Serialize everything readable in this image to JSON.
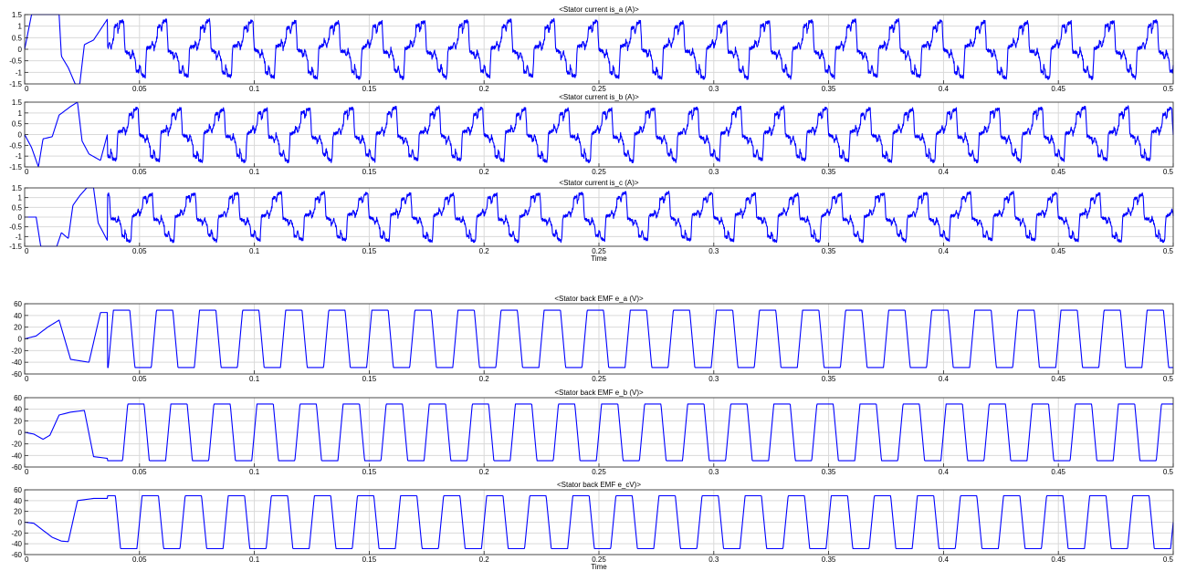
{
  "figure": {
    "trace_color": "#0000ff",
    "grid": true
  },
  "chart_data": [
    {
      "type": "line",
      "title": "<Stator current is_a (A)>",
      "xlabel": "",
      "ylabel": "",
      "xlim": [
        0,
        0.5
      ],
      "ylim": [
        -1.5,
        1.5
      ],
      "xticks": [
        0,
        0.05,
        0.1,
        0.15,
        0.2,
        0.25,
        0.3,
        0.35,
        0.4,
        0.45,
        0.5
      ],
      "xtick_labels": [
        "0",
        "0.05",
        "0.1",
        "0.15",
        "0.2",
        "0.25",
        "0.3",
        "0.35",
        "0.4",
        "0.45",
        "0.5"
      ],
      "yticks": [
        -1.5,
        -1,
        -0.5,
        0,
        0.5,
        1,
        1.5
      ],
      "ytick_labels": [
        "-1.5",
        "-1",
        "-0.5",
        "0",
        "0.5",
        "1",
        "1.5"
      ],
      "series": [
        {
          "kind": "current",
          "period": 0.01875,
          "phase": 0.0,
          "amplitude": 1.25,
          "startup": [
            [
              0,
              0
            ],
            [
              0.003,
              1.5
            ],
            [
              0.015,
              1.5
            ],
            [
              0.016,
              -0.3
            ],
            [
              0.019,
              -0.8
            ],
            [
              0.022,
              -1.5
            ],
            [
              0.024,
              -1.5
            ],
            [
              0.026,
              0.2
            ],
            [
              0.03,
              0.4
            ],
            [
              0.036,
              1.3
            ]
          ]
        }
      ]
    },
    {
      "type": "line",
      "title": "<Stator current is_b (A)>",
      "xlabel": "",
      "ylabel": "",
      "xlim": [
        0,
        0.5
      ],
      "ylim": [
        -1.5,
        1.5
      ],
      "xticks": [
        0,
        0.05,
        0.1,
        0.15,
        0.2,
        0.25,
        0.3,
        0.35,
        0.4,
        0.45,
        0.5
      ],
      "xtick_labels": [
        "0",
        "0.05",
        "0.1",
        "0.15",
        "0.2",
        "0.25",
        "0.3",
        "0.35",
        "0.4",
        "0.45",
        "0.5"
      ],
      "yticks": [
        -1.5,
        -1,
        -0.5,
        0,
        0.5,
        1,
        1.5
      ],
      "ytick_labels": [
        "-1.5",
        "-1",
        "-0.5",
        "0",
        "0.5",
        "1",
        "1.5"
      ],
      "series": [
        {
          "kind": "current",
          "period": 0.01875,
          "phase": 0.00625,
          "amplitude": 1.25,
          "startup": [
            [
              0,
              0
            ],
            [
              0.003,
              -0.6
            ],
            [
              0.006,
              -1.5
            ],
            [
              0.008,
              -0.2
            ],
            [
              0.012,
              -0.1
            ],
            [
              0.015,
              0.9
            ],
            [
              0.02,
              1.3
            ],
            [
              0.023,
              1.5
            ],
            [
              0.025,
              -0.3
            ],
            [
              0.028,
              -0.9
            ],
            [
              0.033,
              -1.2
            ],
            [
              0.036,
              0
            ]
          ]
        }
      ]
    },
    {
      "type": "line",
      "title": "<Stator current is_c (A)>",
      "xlabel": "Time",
      "ylabel": "",
      "xlim": [
        0,
        0.5
      ],
      "ylim": [
        -1.5,
        1.5
      ],
      "xticks": [
        0,
        0.05,
        0.1,
        0.15,
        0.2,
        0.25,
        0.3,
        0.35,
        0.4,
        0.45,
        0.5
      ],
      "xtick_labels": [
        "0",
        "0.05",
        "0.1",
        "0.15",
        "0.2",
        "0.25",
        "0.3",
        "0.35",
        "0.4",
        "0.45",
        "0.5"
      ],
      "yticks": [
        -1.5,
        -1,
        -0.5,
        0,
        0.5,
        1,
        1.5
      ],
      "ytick_labels": [
        "-1.5",
        "-1",
        "-0.5",
        "0",
        "0.5",
        "1",
        "1.5"
      ],
      "series": [
        {
          "kind": "current",
          "period": 0.01875,
          "phase": 0.0125,
          "amplitude": 1.25,
          "startup": [
            [
              0,
              0
            ],
            [
              0.005,
              0
            ],
            [
              0.007,
              -1.5
            ],
            [
              0.014,
              -1.5
            ],
            [
              0.016,
              -0.8
            ],
            [
              0.019,
              -1.1
            ],
            [
              0.021,
              0.6
            ],
            [
              0.024,
              1.1
            ],
            [
              0.027,
              1.5
            ],
            [
              0.03,
              1.5
            ],
            [
              0.032,
              -0.3
            ],
            [
              0.036,
              -1.2
            ]
          ]
        }
      ]
    },
    {
      "type": "line",
      "title": "<Stator back EMF e_a (V)>",
      "xlabel": "",
      "ylabel": "",
      "xlim": [
        0,
        0.5
      ],
      "ylim": [
        -60,
        60
      ],
      "xticks": [
        0,
        0.05,
        0.1,
        0.15,
        0.2,
        0.25,
        0.3,
        0.35,
        0.4,
        0.45,
        0.5
      ],
      "xtick_labels": [
        "0",
        "0.05",
        "0.1",
        "0.15",
        "0.2",
        "0.25",
        "0.3",
        "0.35",
        "0.4",
        "0.45",
        "0.5"
      ],
      "yticks": [
        -60,
        -40,
        -20,
        0,
        20,
        40,
        60
      ],
      "ytick_labels": [
        "-60",
        "-40",
        "-20",
        "0",
        "20",
        "40",
        "60"
      ],
      "series": [
        {
          "kind": "emf",
          "period": 0.01875,
          "phase": 0.0,
          "amplitude": 49,
          "startup": [
            [
              0,
              0
            ],
            [
              0.005,
              5
            ],
            [
              0.01,
              20
            ],
            [
              0.015,
              32
            ],
            [
              0.02,
              -35
            ],
            [
              0.028,
              -40
            ],
            [
              0.033,
              45
            ],
            [
              0.036,
              45
            ]
          ]
        }
      ]
    },
    {
      "type": "line",
      "title": "<Stator back EMF e_b (V)>",
      "xlabel": "",
      "ylabel": "",
      "xlim": [
        0,
        0.5
      ],
      "ylim": [
        -60,
        60
      ],
      "xticks": [
        0,
        0.05,
        0.1,
        0.15,
        0.2,
        0.25,
        0.3,
        0.35,
        0.4,
        0.45,
        0.5
      ],
      "xtick_labels": [
        "0",
        "0.05",
        "0.1",
        "0.15",
        "0.2",
        "0.25",
        "0.3",
        "0.35",
        "0.4",
        "0.45",
        "0.5"
      ],
      "yticks": [
        -60,
        -40,
        -20,
        0,
        20,
        40,
        60
      ],
      "ytick_labels": [
        "-60",
        "-40",
        "-20",
        "0",
        "20",
        "40",
        "60"
      ],
      "series": [
        {
          "kind": "emf",
          "period": 0.01875,
          "phase": 0.00625,
          "amplitude": 49,
          "startup": [
            [
              0,
              0
            ],
            [
              0.004,
              -3
            ],
            [
              0.008,
              -12
            ],
            [
              0.011,
              -5
            ],
            [
              0.015,
              30
            ],
            [
              0.02,
              35
            ],
            [
              0.026,
              38
            ],
            [
              0.03,
              -42
            ],
            [
              0.036,
              -45
            ]
          ]
        }
      ]
    },
    {
      "type": "line",
      "title": "<Stator back EMF e_cV)>",
      "xlabel": "Time",
      "ylabel": "",
      "xlim": [
        0,
        0.5
      ],
      "ylim": [
        -60,
        60
      ],
      "xticks": [
        0,
        0.05,
        0.1,
        0.15,
        0.2,
        0.25,
        0.3,
        0.35,
        0.4,
        0.45,
        0.5
      ],
      "xtick_labels": [
        "0",
        "0.05",
        "0.1",
        "0.15",
        "0.2",
        "0.25",
        "0.3",
        "0.35",
        "0.4",
        "0.45",
        "0.5"
      ],
      "yticks": [
        -60,
        -40,
        -20,
        0,
        20,
        40,
        60
      ],
      "ytick_labels": [
        "-60",
        "-40",
        "-20",
        "0",
        "20",
        "40",
        "60"
      ],
      "series": [
        {
          "kind": "emf",
          "period": 0.01875,
          "phase": 0.0125,
          "amplitude": 49,
          "startup": [
            [
              0,
              0
            ],
            [
              0.004,
              -2
            ],
            [
              0.008,
              -15
            ],
            [
              0.012,
              -28
            ],
            [
              0.016,
              -35
            ],
            [
              0.019,
              -36
            ],
            [
              0.023,
              40
            ],
            [
              0.03,
              44
            ],
            [
              0.036,
              44
            ]
          ]
        }
      ]
    }
  ]
}
